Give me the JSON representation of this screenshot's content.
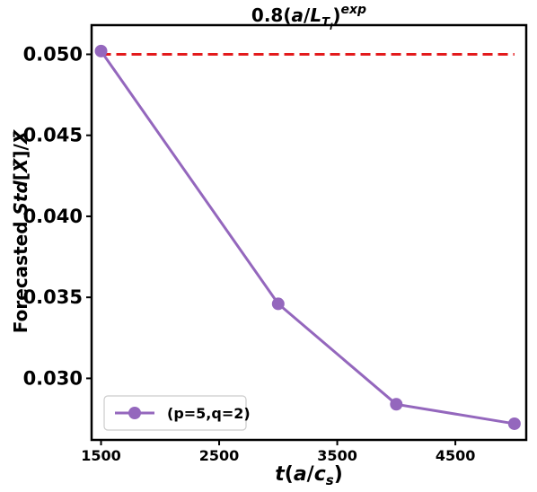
{
  "chart_data": {
    "type": "line",
    "title": "0.8(a/L_{T_i})^{exp}",
    "xlabel": "t(a/c_s)",
    "ylabel": "Forecasted Std[X̄]/X̄",
    "xlim": [
      1420,
      5100
    ],
    "ylim": [
      0.0262,
      0.0518
    ],
    "x_ticks": [
      1500,
      2500,
      3500,
      4500
    ],
    "y_ticks": [
      0.03,
      0.035,
      0.04,
      0.045,
      0.05
    ],
    "x_tick_labels": [
      "1500",
      "2500",
      "3500",
      "4500"
    ],
    "y_tick_labels": [
      "0.030",
      "0.035",
      "0.040",
      "0.045",
      "0.050"
    ],
    "legend_position": "lower-left",
    "grid": false,
    "series": [
      {
        "name": "(p=5,q=2)",
        "color": "#9467bd",
        "marker": "circle",
        "x": [
          1500,
          3000,
          4000,
          5000
        ],
        "values": [
          0.0502,
          0.0346,
          0.0284,
          0.0272
        ]
      }
    ],
    "reference_line": {
      "style": "dashed",
      "color": "#e31a1c",
      "y": 0.05,
      "x_range": [
        1500,
        5000
      ]
    }
  }
}
